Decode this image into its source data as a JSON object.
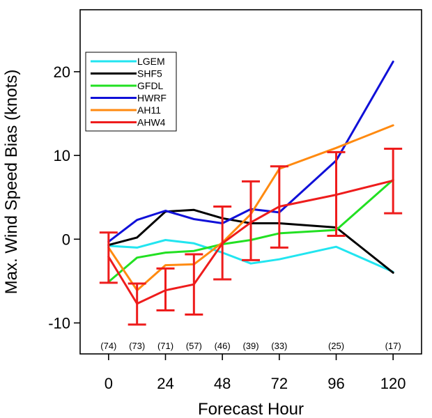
{
  "chart_data": {
    "type": "line",
    "title": "",
    "xlabel": "Forecast Hour",
    "ylabel": "Max. Wind Speed Bias (knots)",
    "xlim": [
      -12,
      132
    ],
    "ylim": [
      -13.7,
      27.4
    ],
    "xticks": [
      0,
      24,
      48,
      72,
      96,
      120
    ],
    "yticks": [
      -10,
      0,
      10,
      20
    ],
    "grid": false,
    "legend_position": "top-left",
    "x": [
      0,
      12,
      24,
      36,
      48,
      60,
      72,
      96,
      120
    ],
    "series": [
      {
        "name": "LGEM",
        "color": "#22e5f0",
        "values": [
          -0.8,
          -1.0,
          -0.1,
          -0.5,
          -1.6,
          -2.9,
          -2.4,
          -0.9,
          -3.9
        ]
      },
      {
        "name": "SHF5",
        "color": "#000000",
        "values": [
          -0.7,
          0.2,
          3.3,
          3.5,
          2.5,
          1.9,
          1.9,
          1.4,
          -4.0
        ]
      },
      {
        "name": "GFDL",
        "color": "#22e022",
        "values": [
          -5.1,
          -2.2,
          -1.6,
          -1.4,
          -0.6,
          -0.1,
          0.7,
          1.1,
          7.1
        ]
      },
      {
        "name": "HWRF",
        "color": "#1010d8",
        "values": [
          -0.3,
          2.3,
          3.4,
          2.4,
          1.9,
          3.6,
          3.2,
          9.4,
          21.2
        ]
      },
      {
        "name": "AH11",
        "color": "#ff8a10",
        "values": [
          -1.0,
          -6.1,
          -3.1,
          -3.0,
          -0.4,
          3.0,
          8.4,
          10.9,
          13.6
        ]
      },
      {
        "name": "AHW4",
        "color": "#ee1c1c",
        "values": [
          -2.1,
          -7.7,
          -6.1,
          -5.4,
          -0.5,
          2.0,
          3.9,
          5.3,
          7.0
        ]
      }
    ],
    "error_bars": {
      "series": "AHW4",
      "color": "#ee1c1c",
      "x": [
        0,
        12,
        24,
        36,
        48,
        60,
        72,
        96,
        120
      ],
      "low": [
        -5.2,
        -10.2,
        -8.5,
        -9.0,
        -4.8,
        -2.5,
        -1.0,
        0.4,
        3.1
      ],
      "high": [
        0.8,
        -5.3,
        -3.5,
        -1.8,
        3.9,
        6.9,
        8.7,
        10.4,
        10.8
      ]
    },
    "case_counts": {
      "x": [
        0,
        12,
        24,
        36,
        48,
        60,
        72,
        96,
        120
      ],
      "labels": [
        "(74)",
        "(73)",
        "(71)",
        "(57)",
        "(46)",
        "(39)",
        "(33)",
        "(25)",
        "(17)"
      ]
    }
  }
}
